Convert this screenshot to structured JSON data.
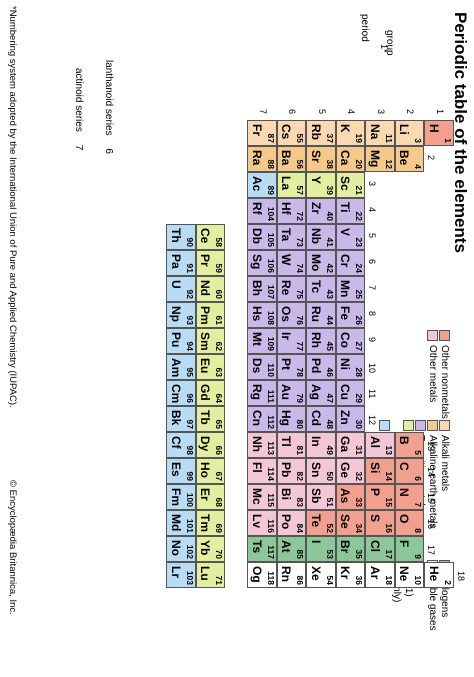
{
  "title": "Periodic table of the elements",
  "labels": {
    "period": "period",
    "group": "group",
    "group_footnote_marker": "1*",
    "lanthanoid_series": "lanthanoid series",
    "lanthanoid_series_num": "6",
    "actinoid_series": "actinoid series",
    "actinoid_series_num": "7"
  },
  "period_numbers": [
    "1",
    "2",
    "3",
    "4",
    "5",
    "6",
    "7"
  ],
  "group_numbers": [
    "2",
    "3",
    "4",
    "5",
    "6",
    "7",
    "8",
    "9",
    "10",
    "11",
    "12",
    "13",
    "14",
    "15",
    "16",
    "17",
    "18"
  ],
  "legend": [
    {
      "key": "alkali",
      "label": "Alkali metals",
      "color": "#fad9b2"
    },
    {
      "key": "alkaline",
      "label": "Alkaline-earth metals",
      "color": "#f5c98a"
    },
    {
      "key": "transition",
      "label": "Transition metals",
      "color": "#c9b9e8"
    },
    {
      "key": "rare",
      "label": "Rare-earth elements (21, 39, 57–71)",
      "label2": "and lanthanoid elements (57–71 only)",
      "color": "#e2efa0"
    },
    {
      "key": "actinoid",
      "label": "Actinoid elements",
      "color": "#b7dcf3"
    },
    {
      "key": "othernonmetal",
      "label": "Other nonmetals",
      "color": "#f1a08f"
    },
    {
      "key": "othermetal",
      "label": "Other metals",
      "color": "#f4c7d6"
    },
    {
      "key": "halogen",
      "label": "Halogens",
      "color": "#8cc79a"
    },
    {
      "key": "noble",
      "label": "Noble gases",
      "color": "#ffffff"
    }
  ],
  "colors": {
    "alkali": "#fad9b2",
    "alkaline": "#f5c98a",
    "transition": "#c9b9e8",
    "rare": "#e2efa0",
    "actinoid": "#b7dcf3",
    "othernonmetal": "#f1a08f",
    "othermetal": "#f4c7d6",
    "halogen": "#8cc79a",
    "noble": "#ffffff",
    "hydrogen": "#f1a08f"
  },
  "elements": [
    {
      "z": "1",
      "s": "H",
      "g": 1,
      "p": 1,
      "c": "hydrogen"
    },
    {
      "z": "2",
      "s": "He",
      "g": 18,
      "p": 1,
      "c": "noble"
    },
    {
      "z": "3",
      "s": "Li",
      "g": 1,
      "p": 2,
      "c": "alkali"
    },
    {
      "z": "4",
      "s": "Be",
      "g": 2,
      "p": 2,
      "c": "alkaline"
    },
    {
      "z": "5",
      "s": "B",
      "g": 13,
      "p": 2,
      "c": "othernonmetal"
    },
    {
      "z": "6",
      "s": "C",
      "g": 14,
      "p": 2,
      "c": "othernonmetal"
    },
    {
      "z": "7",
      "s": "N",
      "g": 15,
      "p": 2,
      "c": "othernonmetal"
    },
    {
      "z": "8",
      "s": "O",
      "g": 16,
      "p": 2,
      "c": "othernonmetal"
    },
    {
      "z": "9",
      "s": "F",
      "g": 17,
      "p": 2,
      "c": "halogen"
    },
    {
      "z": "10",
      "s": "Ne",
      "g": 18,
      "p": 2,
      "c": "noble"
    },
    {
      "z": "11",
      "s": "Na",
      "g": 1,
      "p": 3,
      "c": "alkali"
    },
    {
      "z": "12",
      "s": "Mg",
      "g": 2,
      "p": 3,
      "c": "alkaline"
    },
    {
      "z": "13",
      "s": "Al",
      "g": 13,
      "p": 3,
      "c": "othermetal"
    },
    {
      "z": "14",
      "s": "Si",
      "g": 14,
      "p": 3,
      "c": "othernonmetal"
    },
    {
      "z": "15",
      "s": "P",
      "g": 15,
      "p": 3,
      "c": "othernonmetal"
    },
    {
      "z": "16",
      "s": "S",
      "g": 16,
      "p": 3,
      "c": "othernonmetal"
    },
    {
      "z": "17",
      "s": "Cl",
      "g": 17,
      "p": 3,
      "c": "halogen"
    },
    {
      "z": "18",
      "s": "Ar",
      "g": 18,
      "p": 3,
      "c": "noble"
    },
    {
      "z": "19",
      "s": "K",
      "g": 1,
      "p": 4,
      "c": "alkali"
    },
    {
      "z": "20",
      "s": "Ca",
      "g": 2,
      "p": 4,
      "c": "alkaline"
    },
    {
      "z": "21",
      "s": "Sc",
      "g": 3,
      "p": 4,
      "c": "rare"
    },
    {
      "z": "22",
      "s": "Ti",
      "g": 4,
      "p": 4,
      "c": "transition"
    },
    {
      "z": "23",
      "s": "V",
      "g": 5,
      "p": 4,
      "c": "transition"
    },
    {
      "z": "24",
      "s": "Cr",
      "g": 6,
      "p": 4,
      "c": "transition"
    },
    {
      "z": "25",
      "s": "Mn",
      "g": 7,
      "p": 4,
      "c": "transition"
    },
    {
      "z": "26",
      "s": "Fe",
      "g": 8,
      "p": 4,
      "c": "transition"
    },
    {
      "z": "27",
      "s": "Co",
      "g": 9,
      "p": 4,
      "c": "transition"
    },
    {
      "z": "28",
      "s": "Ni",
      "g": 10,
      "p": 4,
      "c": "transition"
    },
    {
      "z": "29",
      "s": "Cu",
      "g": 11,
      "p": 4,
      "c": "transition"
    },
    {
      "z": "30",
      "s": "Zn",
      "g": 12,
      "p": 4,
      "c": "transition"
    },
    {
      "z": "31",
      "s": "Ga",
      "g": 13,
      "p": 4,
      "c": "othermetal"
    },
    {
      "z": "32",
      "s": "Ge",
      "g": 14,
      "p": 4,
      "c": "othermetal"
    },
    {
      "z": "33",
      "s": "As",
      "g": 15,
      "p": 4,
      "c": "othernonmetal"
    },
    {
      "z": "34",
      "s": "Se",
      "g": 16,
      "p": 4,
      "c": "othernonmetal"
    },
    {
      "z": "35",
      "s": "Br",
      "g": 17,
      "p": 4,
      "c": "halogen"
    },
    {
      "z": "36",
      "s": "Kr",
      "g": 18,
      "p": 4,
      "c": "noble"
    },
    {
      "z": "37",
      "s": "Rb",
      "g": 1,
      "p": 5,
      "c": "alkali"
    },
    {
      "z": "38",
      "s": "Sr",
      "g": 2,
      "p": 5,
      "c": "alkaline"
    },
    {
      "z": "39",
      "s": "Y",
      "g": 3,
      "p": 5,
      "c": "rare"
    },
    {
      "z": "40",
      "s": "Zr",
      "g": 4,
      "p": 5,
      "c": "transition"
    },
    {
      "z": "41",
      "s": "Nb",
      "g": 5,
      "p": 5,
      "c": "transition"
    },
    {
      "z": "42",
      "s": "Mo",
      "g": 6,
      "p": 5,
      "c": "transition"
    },
    {
      "z": "43",
      "s": "Tc",
      "g": 7,
      "p": 5,
      "c": "transition"
    },
    {
      "z": "44",
      "s": "Ru",
      "g": 8,
      "p": 5,
      "c": "transition"
    },
    {
      "z": "45",
      "s": "Rh",
      "g": 9,
      "p": 5,
      "c": "transition"
    },
    {
      "z": "46",
      "s": "Pd",
      "g": 10,
      "p": 5,
      "c": "transition"
    },
    {
      "z": "47",
      "s": "Ag",
      "g": 11,
      "p": 5,
      "c": "transition"
    },
    {
      "z": "48",
      "s": "Cd",
      "g": 12,
      "p": 5,
      "c": "transition"
    },
    {
      "z": "49",
      "s": "In",
      "g": 13,
      "p": 5,
      "c": "othermetal"
    },
    {
      "z": "50",
      "s": "Sn",
      "g": 14,
      "p": 5,
      "c": "othermetal"
    },
    {
      "z": "51",
      "s": "Sb",
      "g": 15,
      "p": 5,
      "c": "othermetal"
    },
    {
      "z": "52",
      "s": "Te",
      "g": 16,
      "p": 5,
      "c": "othernonmetal"
    },
    {
      "z": "53",
      "s": "I",
      "g": 17,
      "p": 5,
      "c": "halogen"
    },
    {
      "z": "54",
      "s": "Xe",
      "g": 18,
      "p": 5,
      "c": "noble"
    },
    {
      "z": "55",
      "s": "Cs",
      "g": 1,
      "p": 6,
      "c": "alkali"
    },
    {
      "z": "56",
      "s": "Ba",
      "g": 2,
      "p": 6,
      "c": "alkaline"
    },
    {
      "z": "57",
      "s": "La",
      "g": 3,
      "p": 6,
      "c": "rare"
    },
    {
      "z": "72",
      "s": "Hf",
      "g": 4,
      "p": 6,
      "c": "transition"
    },
    {
      "z": "73",
      "s": "Ta",
      "g": 5,
      "p": 6,
      "c": "transition"
    },
    {
      "z": "74",
      "s": "W",
      "g": 6,
      "p": 6,
      "c": "transition"
    },
    {
      "z": "75",
      "s": "Re",
      "g": 7,
      "p": 6,
      "c": "transition"
    },
    {
      "z": "76",
      "s": "Os",
      "g": 8,
      "p": 6,
      "c": "transition"
    },
    {
      "z": "77",
      "s": "Ir",
      "g": 9,
      "p": 6,
      "c": "transition"
    },
    {
      "z": "78",
      "s": "Pt",
      "g": 10,
      "p": 6,
      "c": "transition"
    },
    {
      "z": "79",
      "s": "Au",
      "g": 11,
      "p": 6,
      "c": "transition"
    },
    {
      "z": "80",
      "s": "Hg",
      "g": 12,
      "p": 6,
      "c": "transition"
    },
    {
      "z": "81",
      "s": "Tl",
      "g": 13,
      "p": 6,
      "c": "othermetal"
    },
    {
      "z": "82",
      "s": "Pb",
      "g": 14,
      "p": 6,
      "c": "othermetal"
    },
    {
      "z": "83",
      "s": "Bi",
      "g": 15,
      "p": 6,
      "c": "othermetal"
    },
    {
      "z": "84",
      "s": "Po",
      "g": 16,
      "p": 6,
      "c": "othermetal"
    },
    {
      "z": "85",
      "s": "At",
      "g": 17,
      "p": 6,
      "c": "halogen"
    },
    {
      "z": "86",
      "s": "Rn",
      "g": 18,
      "p": 6,
      "c": "noble"
    },
    {
      "z": "87",
      "s": "Fr",
      "g": 1,
      "p": 7,
      "c": "alkali"
    },
    {
      "z": "88",
      "s": "Ra",
      "g": 2,
      "p": 7,
      "c": "alkaline"
    },
    {
      "z": "89",
      "s": "Ac",
      "g": 3,
      "p": 7,
      "c": "actinoid"
    },
    {
      "z": "104",
      "s": "Rf",
      "g": 4,
      "p": 7,
      "c": "transition"
    },
    {
      "z": "105",
      "s": "Db",
      "g": 5,
      "p": 7,
      "c": "transition"
    },
    {
      "z": "106",
      "s": "Sg",
      "g": 6,
      "p": 7,
      "c": "transition"
    },
    {
      "z": "107",
      "s": "Bh",
      "g": 7,
      "p": 7,
      "c": "transition"
    },
    {
      "z": "108",
      "s": "Hs",
      "g": 8,
      "p": 7,
      "c": "transition"
    },
    {
      "z": "109",
      "s": "Mt",
      "g": 9,
      "p": 7,
      "c": "transition"
    },
    {
      "z": "110",
      "s": "Ds",
      "g": 10,
      "p": 7,
      "c": "transition"
    },
    {
      "z": "111",
      "s": "Rg",
      "g": 11,
      "p": 7,
      "c": "transition"
    },
    {
      "z": "112",
      "s": "Cn",
      "g": 12,
      "p": 7,
      "c": "transition"
    },
    {
      "z": "113",
      "s": "Nh",
      "g": 13,
      "p": 7,
      "c": "othermetal"
    },
    {
      "z": "114",
      "s": "Fl",
      "g": 14,
      "p": 7,
      "c": "othermetal"
    },
    {
      "z": "115",
      "s": "Mc",
      "g": 15,
      "p": 7,
      "c": "othermetal"
    },
    {
      "z": "116",
      "s": "Lv",
      "g": 16,
      "p": 7,
      "c": "othermetal"
    },
    {
      "z": "117",
      "s": "Ts",
      "g": 17,
      "p": 7,
      "c": "halogen"
    },
    {
      "z": "118",
      "s": "Og",
      "g": 18,
      "p": 7,
      "c": "noble"
    }
  ],
  "lanthanoids": [
    {
      "z": "58",
      "s": "Ce"
    },
    {
      "z": "59",
      "s": "Pr"
    },
    {
      "z": "60",
      "s": "Nd"
    },
    {
      "z": "61",
      "s": "Pm"
    },
    {
      "z": "62",
      "s": "Sm"
    },
    {
      "z": "63",
      "s": "Eu"
    },
    {
      "z": "64",
      "s": "Gd"
    },
    {
      "z": "65",
      "s": "Tb"
    },
    {
      "z": "66",
      "s": "Dy"
    },
    {
      "z": "67",
      "s": "Ho"
    },
    {
      "z": "68",
      "s": "Er"
    },
    {
      "z": "69",
      "s": "Tm"
    },
    {
      "z": "70",
      "s": "Yb"
    },
    {
      "z": "71",
      "s": "Lu"
    }
  ],
  "actinoids": [
    {
      "z": "90",
      "s": "Th"
    },
    {
      "z": "91",
      "s": "Pa"
    },
    {
      "z": "92",
      "s": "U"
    },
    {
      "z": "93",
      "s": "Np"
    },
    {
      "z": "94",
      "s": "Pu"
    },
    {
      "z": "95",
      "s": "Am"
    },
    {
      "z": "96",
      "s": "Cm"
    },
    {
      "z": "97",
      "s": "Bk"
    },
    {
      "z": "98",
      "s": "Cf"
    },
    {
      "z": "99",
      "s": "Es"
    },
    {
      "z": "100",
      "s": "Fm"
    },
    {
      "z": "101",
      "s": "Md"
    },
    {
      "z": "102",
      "s": "No"
    },
    {
      "z": "103",
      "s": "Lr"
    }
  ],
  "footnote": "*Numbering system adopted by the International Union of Pure and Applied Chemistry (IUPAC).",
  "copyright": "© Encyclopædia Britannica, Inc."
}
